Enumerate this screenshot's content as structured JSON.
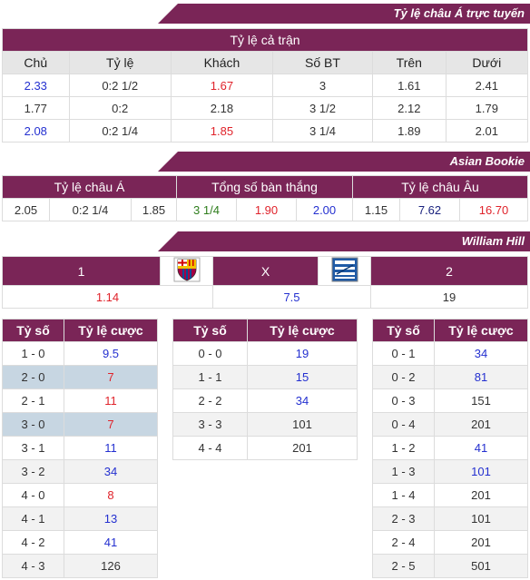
{
  "banner1": "Tỷ lệ châu Á trực tuyến",
  "fulltime": {
    "title": "Tỷ lệ cả trận",
    "headers": [
      "Chủ",
      "Tỷ lệ",
      "Khách",
      "Số BT",
      "Trên",
      "Dưới"
    ],
    "rows": [
      [
        "2.33",
        "0:2 1/2",
        "1.67",
        "3",
        "1.61",
        "2.41"
      ],
      [
        "1.77",
        "0:2",
        "2.18",
        "3 1/2",
        "2.12",
        "1.79"
      ],
      [
        "2.08",
        "0:2 1/4",
        "1.85",
        "3 1/4",
        "1.89",
        "2.01"
      ]
    ]
  },
  "banner2": "Asian Bookie",
  "asian": {
    "headers": [
      "Tỷ lệ châu Á",
      "Tổng số bàn thắng",
      "Tỷ lệ châu Âu"
    ],
    "values": [
      "2.05",
      "0:2 1/4",
      "1.85",
      "3 1/4",
      "1.90",
      "2.00",
      "1.15",
      "7.62",
      "16.70"
    ]
  },
  "banner3": "William Hill",
  "wh": {
    "labels": [
      "1",
      "X",
      "2"
    ],
    "values": [
      "1.14",
      "7.5",
      "19"
    ],
    "home_logo": "barcelona-crest-icon",
    "away_logo": "alaves-crest-icon"
  },
  "scores": {
    "header_score": "Tỷ số",
    "header_odds": "Tỷ lệ cược",
    "left": [
      [
        "1 - 0",
        "9.5"
      ],
      [
        "2 - 0",
        "7"
      ],
      [
        "2 - 1",
        "11"
      ],
      [
        "3 - 0",
        "7"
      ],
      [
        "3 - 1",
        "11"
      ],
      [
        "3 - 2",
        "34"
      ],
      [
        "4 - 0",
        "8"
      ],
      [
        "4 - 1",
        "13"
      ],
      [
        "4 - 2",
        "41"
      ],
      [
        "4 - 3",
        "126"
      ]
    ],
    "middle": [
      [
        "0 - 0",
        "19"
      ],
      [
        "1 - 1",
        "15"
      ],
      [
        "2 - 2",
        "34"
      ],
      [
        "3 - 3",
        "101"
      ],
      [
        "4 - 4",
        "201"
      ]
    ],
    "right": [
      [
        "0 - 1",
        "34"
      ],
      [
        "0 - 2",
        "81"
      ],
      [
        "0 - 3",
        "151"
      ],
      [
        "0 - 4",
        "201"
      ],
      [
        "1 - 2",
        "41"
      ],
      [
        "1 - 3",
        "101"
      ],
      [
        "1 - 4",
        "201"
      ],
      [
        "2 - 3",
        "101"
      ],
      [
        "2 - 4",
        "201"
      ],
      [
        "2 - 5",
        "501"
      ]
    ]
  }
}
